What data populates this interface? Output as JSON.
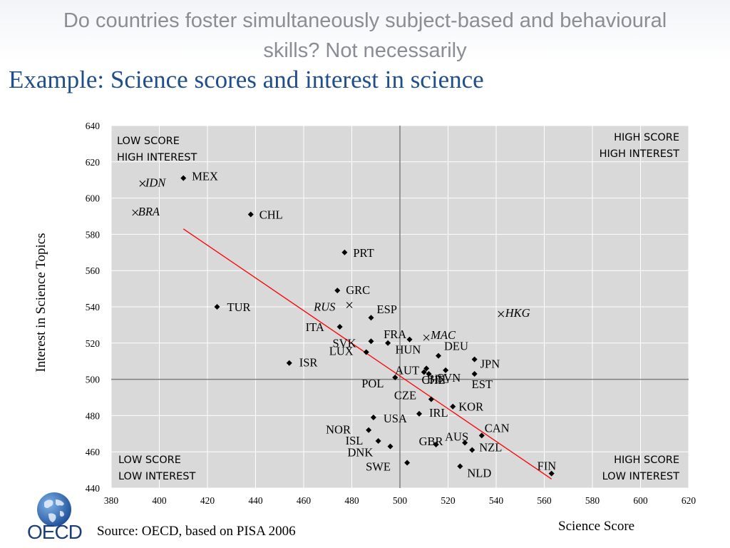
{
  "header": {
    "title": "Do countries foster simultaneously subject-based and behavioural skills? Not necessarily",
    "subtitle": "Example: Science scores and interest in science"
  },
  "footer": {
    "source": "Source: OECD, based on PISA 2006",
    "logo_text": "OECD"
  },
  "colors": {
    "subtitle": "#1f4e8c",
    "plot_bg": "#d9d9d9",
    "trend": "#ff0000",
    "marker": "#000000"
  },
  "chart_data": {
    "type": "scatter",
    "xlabel": "Science Score",
    "ylabel": "Interest in Science Topics",
    "xlim": [
      380,
      620
    ],
    "ylim": [
      440,
      640
    ],
    "xticks": [
      380,
      400,
      420,
      440,
      460,
      480,
      500,
      520,
      540,
      560,
      580,
      600,
      620
    ],
    "yticks": [
      440,
      460,
      480,
      500,
      520,
      540,
      560,
      580,
      600,
      620,
      640
    ],
    "grid": true,
    "reference_lines": {
      "x": 500,
      "y": 500
    },
    "quadrant_labels": {
      "top_left": [
        "LOW SCORE",
        "HIGH INTEREST"
      ],
      "top_right": [
        "HIGH SCORE",
        "HIGH INTEREST"
      ],
      "bottom_left": [
        "LOW SCORE",
        "LOW INTEREST"
      ],
      "bottom_right": [
        "HIGH SCORE",
        "LOW INTEREST"
      ]
    },
    "trendline": [
      [
        410,
        583
      ],
      [
        563,
        445
      ]
    ],
    "points": [
      {
        "label": "MEX",
        "x": 410,
        "y": 611,
        "marker": "diamond"
      },
      {
        "label": "IDN",
        "x": 393,
        "y": 608,
        "marker": "cross",
        "italic": true
      },
      {
        "label": "BRA",
        "x": 390,
        "y": 592,
        "marker": "cross",
        "italic": true
      },
      {
        "label": "CHL",
        "x": 438,
        "y": 591,
        "marker": "diamond"
      },
      {
        "label": "PRT",
        "x": 477,
        "y": 570,
        "marker": "diamond"
      },
      {
        "label": "TUR",
        "x": 424,
        "y": 540,
        "marker": "diamond"
      },
      {
        "label": "GRC",
        "x": 474,
        "y": 549,
        "marker": "diamond"
      },
      {
        "label": "RUS",
        "x": 479,
        "y": 541,
        "marker": "cross",
        "italic": true
      },
      {
        "label": "ESP",
        "x": 488,
        "y": 534,
        "marker": "diamond"
      },
      {
        "label": "ITA",
        "x": 475,
        "y": 529,
        "marker": "diamond"
      },
      {
        "label": "HKG",
        "x": 542,
        "y": 536,
        "marker": "cross",
        "italic": true
      },
      {
        "label": "MAC",
        "x": 511,
        "y": 523,
        "marker": "cross",
        "italic": true
      },
      {
        "label": "FRA",
        "x": 495,
        "y": 520,
        "marker": "diamond"
      },
      {
        "label": "SVK",
        "x": 488,
        "y": 521,
        "marker": "diamond"
      },
      {
        "label": "HUN",
        "x": 504,
        "y": 522,
        "marker": "diamond"
      },
      {
        "label": "DEU",
        "x": 516,
        "y": 513,
        "marker": "diamond"
      },
      {
        "label": "ISR",
        "x": 454,
        "y": 509,
        "marker": "diamond"
      },
      {
        "label": "LUX",
        "x": 486,
        "y": 515,
        "marker": "diamond"
      },
      {
        "label": "AUT",
        "x": 511,
        "y": 506,
        "marker": "diamond"
      },
      {
        "label": "JPN",
        "x": 531,
        "y": 511,
        "marker": "diamond"
      },
      {
        "label": "SVN",
        "x": 519,
        "y": 505,
        "marker": "diamond"
      },
      {
        "label": "EST",
        "x": 531,
        "y": 503,
        "marker": "diamond"
      },
      {
        "label": "CHE",
        "x": 512,
        "y": 503,
        "marker": "diamond"
      },
      {
        "label": "POL",
        "x": 498,
        "y": 501,
        "marker": "diamond"
      },
      {
        "label": "BEL",
        "x": 510,
        "y": 504,
        "marker": "diamond"
      },
      {
        "label": "CZE",
        "x": 513,
        "y": 489,
        "marker": "diamond"
      },
      {
        "label": "KOR",
        "x": 522,
        "y": 485,
        "marker": "diamond"
      },
      {
        "label": "IRL",
        "x": 508,
        "y": 481,
        "marker": "diamond"
      },
      {
        "label": "USA",
        "x": 489,
        "y": 479,
        "marker": "diamond"
      },
      {
        "label": "NOR",
        "x": 487,
        "y": 472,
        "marker": "diamond"
      },
      {
        "label": "CAN",
        "x": 534,
        "y": 469,
        "marker": "diamond"
      },
      {
        "label": "ISL",
        "x": 491,
        "y": 466,
        "marker": "diamond"
      },
      {
        "label": "AUS",
        "x": 527,
        "y": 465,
        "marker": "diamond"
      },
      {
        "label": "GBR",
        "x": 515,
        "y": 464,
        "marker": "diamond"
      },
      {
        "label": "DNK",
        "x": 496,
        "y": 463,
        "marker": "diamond"
      },
      {
        "label": "NZL",
        "x": 530,
        "y": 461,
        "marker": "diamond"
      },
      {
        "label": "SWE",
        "x": 503,
        "y": 454,
        "marker": "diamond"
      },
      {
        "label": "FIN",
        "x": 563,
        "y": 448,
        "marker": "diamond"
      },
      {
        "label": "NLD",
        "x": 525,
        "y": 452,
        "marker": "diamond"
      }
    ]
  }
}
